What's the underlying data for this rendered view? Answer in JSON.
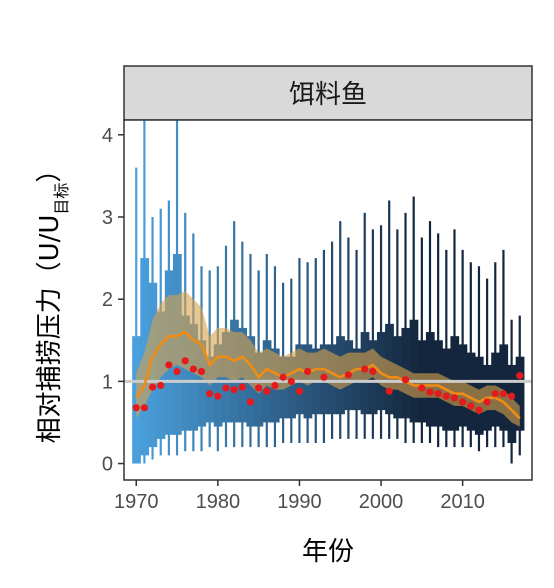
{
  "chart_data": {
    "type": "line",
    "panel_title": "饵料鱼",
    "xlabel": "年份",
    "ylabel": "相对捕捞压力（U/U目标）",
    "ylabel_parts": {
      "main": "相对捕捞压力（U/U",
      "subscript": "目标",
      "close": "）"
    },
    "xlim": [
      1968.5,
      2018.5
    ],
    "ylim": [
      -0.2,
      4.18
    ],
    "x_ticks": [
      1970,
      1980,
      1990,
      2000,
      2010
    ],
    "y_ticks": [
      0,
      1,
      2,
      3,
      4
    ],
    "reference_line": 1,
    "years": [
      1970,
      1971,
      1972,
      1973,
      1974,
      1975,
      1976,
      1977,
      1978,
      1979,
      1980,
      1981,
      1982,
      1983,
      1984,
      1985,
      1986,
      1987,
      1988,
      1989,
      1990,
      1991,
      1992,
      1993,
      1994,
      1995,
      1996,
      1997,
      1998,
      1999,
      2000,
      2001,
      2002,
      2003,
      2004,
      2005,
      2006,
      2007,
      2008,
      2009,
      2010,
      2011,
      2012,
      2013,
      2014,
      2015,
      2016,
      2017
    ],
    "boxes_lower": [
      0.0,
      0.1,
      0.2,
      0.3,
      0.35,
      0.35,
      0.4,
      0.4,
      0.45,
      0.5,
      0.45,
      0.5,
      0.5,
      0.5,
      0.45,
      0.45,
      0.5,
      0.5,
      0.55,
      0.55,
      0.6,
      0.55,
      0.6,
      0.6,
      0.6,
      0.6,
      0.65,
      0.65,
      0.6,
      0.6,
      0.65,
      0.6,
      0.55,
      0.55,
      0.5,
      0.5,
      0.45,
      0.45,
      0.4,
      0.4,
      0.45,
      0.4,
      0.35,
      0.4,
      0.45,
      0.4,
      0.25,
      0.4
    ],
    "boxes_upper": [
      1.55,
      2.5,
      2.2,
      1.85,
      2.35,
      2.55,
      1.8,
      1.7,
      1.5,
      1.3,
      1.45,
      1.6,
      1.75,
      1.65,
      1.55,
      1.35,
      1.5,
      1.4,
      1.3,
      1.3,
      1.45,
      1.45,
      1.4,
      1.45,
      1.45,
      1.55,
      1.5,
      1.4,
      1.6,
      1.5,
      1.6,
      1.7,
      1.55,
      1.65,
      1.75,
      1.5,
      1.6,
      1.5,
      1.4,
      1.55,
      1.45,
      1.35,
      1.3,
      1.2,
      1.35,
      1.45,
      1.2,
      1.3
    ],
    "whiskers_lower": [
      0.0,
      0.0,
      0.05,
      0.1,
      0.1,
      0.1,
      0.15,
      0.15,
      0.15,
      0.2,
      0.15,
      0.2,
      0.2,
      0.2,
      0.2,
      0.2,
      0.2,
      0.2,
      0.25,
      0.25,
      0.25,
      0.25,
      0.25,
      0.25,
      0.3,
      0.3,
      0.3,
      0.3,
      0.3,
      0.3,
      0.3,
      0.3,
      0.3,
      0.25,
      0.25,
      0.25,
      0.25,
      0.2,
      0.2,
      0.2,
      0.2,
      0.2,
      0.15,
      0.2,
      0.2,
      0.2,
      0.0,
      0.1
    ],
    "whiskers_upper": [
      3.6,
      4.18,
      3.0,
      3.1,
      3.2,
      4.18,
      3.05,
      2.8,
      2.4,
      2.35,
      2.4,
      2.65,
      2.95,
      2.7,
      2.55,
      2.35,
      2.55,
      2.4,
      2.2,
      2.25,
      2.5,
      2.45,
      2.5,
      2.6,
      2.7,
      2.95,
      2.75,
      2.6,
      3.05,
      2.85,
      2.9,
      3.2,
      2.85,
      3.05,
      3.25,
      2.75,
      2.95,
      2.8,
      2.6,
      2.85,
      2.6,
      2.45,
      2.4,
      2.25,
      2.45,
      2.6,
      1.75,
      1.8
    ],
    "series": [
      {
        "values": [
          0.8,
          0.95,
          1.3,
          1.45,
          1.55,
          1.55,
          1.6,
          1.5,
          1.45,
          1.2,
          1.3,
          1.3,
          1.25,
          1.3,
          1.2,
          1.05,
          1.15,
          1.1,
          1.05,
          1.1,
          1.15,
          1.1,
          1.15,
          1.15,
          1.1,
          1.05,
          1.1,
          1.15,
          1.15,
          1.2,
          1.1,
          1.05,
          1.05,
          1.0,
          0.95,
          0.95,
          0.95,
          0.95,
          0.9,
          0.85,
          0.85,
          0.8,
          0.75,
          0.8,
          0.8,
          0.75,
          0.65,
          0.55
        ],
        "lower": [
          0.55,
          0.7,
          0.9,
          1.05,
          1.15,
          1.2,
          1.15,
          1.1,
          1.05,
          0.95,
          1.05,
          1.05,
          1.0,
          1.05,
          0.95,
          0.85,
          0.95,
          0.9,
          0.9,
          0.95,
          1.0,
          0.95,
          1.0,
          1.0,
          0.95,
          0.9,
          0.95,
          1.0,
          1.0,
          1.05,
          0.95,
          0.9,
          0.9,
          0.85,
          0.8,
          0.8,
          0.8,
          0.8,
          0.75,
          0.7,
          0.7,
          0.65,
          0.6,
          0.65,
          0.65,
          0.6,
          0.5,
          0.45
        ],
        "upper": [
          1.1,
          1.35,
          1.75,
          1.95,
          2.05,
          2.05,
          2.1,
          2.0,
          1.9,
          1.55,
          1.65,
          1.65,
          1.6,
          1.6,
          1.5,
          1.35,
          1.4,
          1.35,
          1.3,
          1.35,
          1.4,
          1.35,
          1.35,
          1.4,
          1.35,
          1.3,
          1.35,
          1.35,
          1.35,
          1.4,
          1.3,
          1.25,
          1.2,
          1.15,
          1.1,
          1.1,
          1.1,
          1.1,
          1.05,
          1.0,
          1.0,
          0.95,
          0.9,
          0.95,
          0.95,
          0.9,
          0.8,
          0.7
        ]
      },
      {
        "x": [
          1970,
          1971,
          1972,
          1973,
          1974,
          1975,
          1976,
          1977,
          1978,
          1979,
          1980,
          1981,
          1982,
          1983,
          1984,
          1985,
          1986,
          1987,
          1988,
          1989,
          1990,
          1991,
          1993,
          1996,
          1998,
          1999,
          2001,
          2003,
          2005,
          2006,
          2007,
          2008,
          2009,
          2010,
          2011,
          2012,
          2013,
          2014,
          2015,
          2016,
          2017
        ],
        "values": [
          0.68,
          0.68,
          0.93,
          0.95,
          1.2,
          1.12,
          1.25,
          1.15,
          1.12,
          0.85,
          0.82,
          0.92,
          0.9,
          0.93,
          0.75,
          0.92,
          0.88,
          0.95,
          1.05,
          1.0,
          0.88,
          1.12,
          1.05,
          1.08,
          1.15,
          1.12,
          0.88,
          1.02,
          0.92,
          0.87,
          0.85,
          0.82,
          0.8,
          0.75,
          0.7,
          0.65,
          0.75,
          0.85,
          0.85,
          0.82,
          1.07
        ]
      }
    ],
    "colors": {
      "box_fill_light": "#4a9fdc",
      "box_fill_dark": "#14263d",
      "median_line": "#f08c14",
      "band_fill": "#d9a24b",
      "points": "#e41a1c",
      "reference_line": "#cccccc",
      "strip_fill": "#d9d9d9",
      "panel_border": "#333333"
    }
  }
}
